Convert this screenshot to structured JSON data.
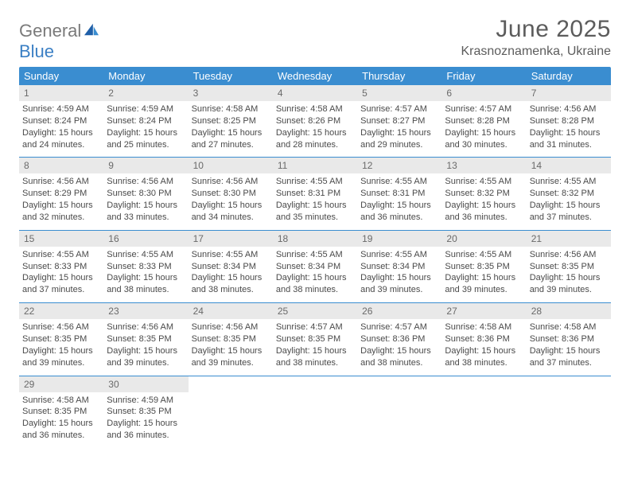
{
  "logo": {
    "word1": "General",
    "word2": "Blue"
  },
  "title": "June 2025",
  "location": "Krasnoznamenka, Ukraine",
  "colors": {
    "header_bg": "#3a8dd0",
    "header_text": "#ffffff",
    "row_divider": "#3a8dd0",
    "daynum_bg": "#e9e9e9",
    "daynum_text": "#6a6a6a",
    "body_text": "#4a4a4a",
    "title_text": "#5c5c5c",
    "logo_gray": "#7a7a7a",
    "logo_blue": "#3a7fc4"
  },
  "weekdays": [
    "Sunday",
    "Monday",
    "Tuesday",
    "Wednesday",
    "Thursday",
    "Friday",
    "Saturday"
  ],
  "weeks": [
    [
      {
        "n": "1",
        "sr": "Sunrise: 4:59 AM",
        "ss": "Sunset: 8:24 PM",
        "d1": "Daylight: 15 hours",
        "d2": "and 24 minutes."
      },
      {
        "n": "2",
        "sr": "Sunrise: 4:59 AM",
        "ss": "Sunset: 8:24 PM",
        "d1": "Daylight: 15 hours",
        "d2": "and 25 minutes."
      },
      {
        "n": "3",
        "sr": "Sunrise: 4:58 AM",
        "ss": "Sunset: 8:25 PM",
        "d1": "Daylight: 15 hours",
        "d2": "and 27 minutes."
      },
      {
        "n": "4",
        "sr": "Sunrise: 4:58 AM",
        "ss": "Sunset: 8:26 PM",
        "d1": "Daylight: 15 hours",
        "d2": "and 28 minutes."
      },
      {
        "n": "5",
        "sr": "Sunrise: 4:57 AM",
        "ss": "Sunset: 8:27 PM",
        "d1": "Daylight: 15 hours",
        "d2": "and 29 minutes."
      },
      {
        "n": "6",
        "sr": "Sunrise: 4:57 AM",
        "ss": "Sunset: 8:28 PM",
        "d1": "Daylight: 15 hours",
        "d2": "and 30 minutes."
      },
      {
        "n": "7",
        "sr": "Sunrise: 4:56 AM",
        "ss": "Sunset: 8:28 PM",
        "d1": "Daylight: 15 hours",
        "d2": "and 31 minutes."
      }
    ],
    [
      {
        "n": "8",
        "sr": "Sunrise: 4:56 AM",
        "ss": "Sunset: 8:29 PM",
        "d1": "Daylight: 15 hours",
        "d2": "and 32 minutes."
      },
      {
        "n": "9",
        "sr": "Sunrise: 4:56 AM",
        "ss": "Sunset: 8:30 PM",
        "d1": "Daylight: 15 hours",
        "d2": "and 33 minutes."
      },
      {
        "n": "10",
        "sr": "Sunrise: 4:56 AM",
        "ss": "Sunset: 8:30 PM",
        "d1": "Daylight: 15 hours",
        "d2": "and 34 minutes."
      },
      {
        "n": "11",
        "sr": "Sunrise: 4:55 AM",
        "ss": "Sunset: 8:31 PM",
        "d1": "Daylight: 15 hours",
        "d2": "and 35 minutes."
      },
      {
        "n": "12",
        "sr": "Sunrise: 4:55 AM",
        "ss": "Sunset: 8:31 PM",
        "d1": "Daylight: 15 hours",
        "d2": "and 36 minutes."
      },
      {
        "n": "13",
        "sr": "Sunrise: 4:55 AM",
        "ss": "Sunset: 8:32 PM",
        "d1": "Daylight: 15 hours",
        "d2": "and 36 minutes."
      },
      {
        "n": "14",
        "sr": "Sunrise: 4:55 AM",
        "ss": "Sunset: 8:32 PM",
        "d1": "Daylight: 15 hours",
        "d2": "and 37 minutes."
      }
    ],
    [
      {
        "n": "15",
        "sr": "Sunrise: 4:55 AM",
        "ss": "Sunset: 8:33 PM",
        "d1": "Daylight: 15 hours",
        "d2": "and 37 minutes."
      },
      {
        "n": "16",
        "sr": "Sunrise: 4:55 AM",
        "ss": "Sunset: 8:33 PM",
        "d1": "Daylight: 15 hours",
        "d2": "and 38 minutes."
      },
      {
        "n": "17",
        "sr": "Sunrise: 4:55 AM",
        "ss": "Sunset: 8:34 PM",
        "d1": "Daylight: 15 hours",
        "d2": "and 38 minutes."
      },
      {
        "n": "18",
        "sr": "Sunrise: 4:55 AM",
        "ss": "Sunset: 8:34 PM",
        "d1": "Daylight: 15 hours",
        "d2": "and 38 minutes."
      },
      {
        "n": "19",
        "sr": "Sunrise: 4:55 AM",
        "ss": "Sunset: 8:34 PM",
        "d1": "Daylight: 15 hours",
        "d2": "and 39 minutes."
      },
      {
        "n": "20",
        "sr": "Sunrise: 4:55 AM",
        "ss": "Sunset: 8:35 PM",
        "d1": "Daylight: 15 hours",
        "d2": "and 39 minutes."
      },
      {
        "n": "21",
        "sr": "Sunrise: 4:56 AM",
        "ss": "Sunset: 8:35 PM",
        "d1": "Daylight: 15 hours",
        "d2": "and 39 minutes."
      }
    ],
    [
      {
        "n": "22",
        "sr": "Sunrise: 4:56 AM",
        "ss": "Sunset: 8:35 PM",
        "d1": "Daylight: 15 hours",
        "d2": "and 39 minutes."
      },
      {
        "n": "23",
        "sr": "Sunrise: 4:56 AM",
        "ss": "Sunset: 8:35 PM",
        "d1": "Daylight: 15 hours",
        "d2": "and 39 minutes."
      },
      {
        "n": "24",
        "sr": "Sunrise: 4:56 AM",
        "ss": "Sunset: 8:35 PM",
        "d1": "Daylight: 15 hours",
        "d2": "and 39 minutes."
      },
      {
        "n": "25",
        "sr": "Sunrise: 4:57 AM",
        "ss": "Sunset: 8:35 PM",
        "d1": "Daylight: 15 hours",
        "d2": "and 38 minutes."
      },
      {
        "n": "26",
        "sr": "Sunrise: 4:57 AM",
        "ss": "Sunset: 8:36 PM",
        "d1": "Daylight: 15 hours",
        "d2": "and 38 minutes."
      },
      {
        "n": "27",
        "sr": "Sunrise: 4:58 AM",
        "ss": "Sunset: 8:36 PM",
        "d1": "Daylight: 15 hours",
        "d2": "and 38 minutes."
      },
      {
        "n": "28",
        "sr": "Sunrise: 4:58 AM",
        "ss": "Sunset: 8:36 PM",
        "d1": "Daylight: 15 hours",
        "d2": "and 37 minutes."
      }
    ],
    [
      {
        "n": "29",
        "sr": "Sunrise: 4:58 AM",
        "ss": "Sunset: 8:35 PM",
        "d1": "Daylight: 15 hours",
        "d2": "and 36 minutes."
      },
      {
        "n": "30",
        "sr": "Sunrise: 4:59 AM",
        "ss": "Sunset: 8:35 PM",
        "d1": "Daylight: 15 hours",
        "d2": "and 36 minutes."
      },
      null,
      null,
      null,
      null,
      null
    ]
  ]
}
